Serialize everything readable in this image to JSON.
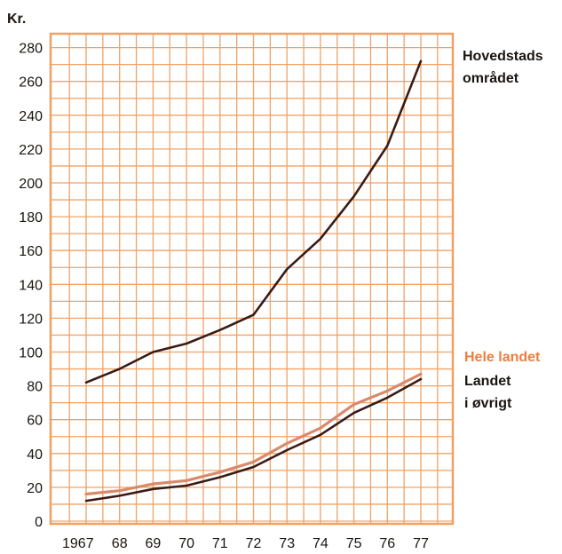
{
  "chart_data": {
    "type": "line",
    "ylabel": "Kr.",
    "xlabel": "",
    "title": "",
    "x": [
      1967,
      1968,
      1969,
      1970,
      1971,
      1972,
      1973,
      1974,
      1975,
      1976,
      1977
    ],
    "x_tick_labels": [
      "1967",
      "68",
      "69",
      "70",
      "71",
      "72",
      "73",
      "74",
      "75",
      "76",
      "77"
    ],
    "ylim": [
      0,
      280
    ],
    "y_ticks": [
      0,
      20,
      40,
      60,
      80,
      100,
      120,
      140,
      160,
      180,
      200,
      220,
      240,
      260,
      280
    ],
    "grid": true,
    "series": [
      {
        "name_lines": [
          "Hovedstads",
          "området"
        ],
        "color": "#3a1b15",
        "values": [
          82,
          90,
          100,
          105,
          113,
          122,
          149,
          167,
          192,
          222,
          272
        ]
      },
      {
        "name_lines": [
          "Hele landet"
        ],
        "color": "#d98a6a",
        "values": [
          16,
          18,
          22,
          24,
          29,
          35,
          46,
          55,
          69,
          77,
          87
        ]
      },
      {
        "name_lines": [
          "Landet",
          "i øvrigt"
        ],
        "color": "#3a1b15",
        "values": [
          12,
          15,
          19,
          21,
          26,
          32,
          42,
          51,
          64,
          73,
          84
        ]
      }
    ]
  },
  "colors": {
    "grid": "#f2a266",
    "frame": "#f0a060",
    "accent_orange": "#f07c3c",
    "text": "#1a1410"
  }
}
